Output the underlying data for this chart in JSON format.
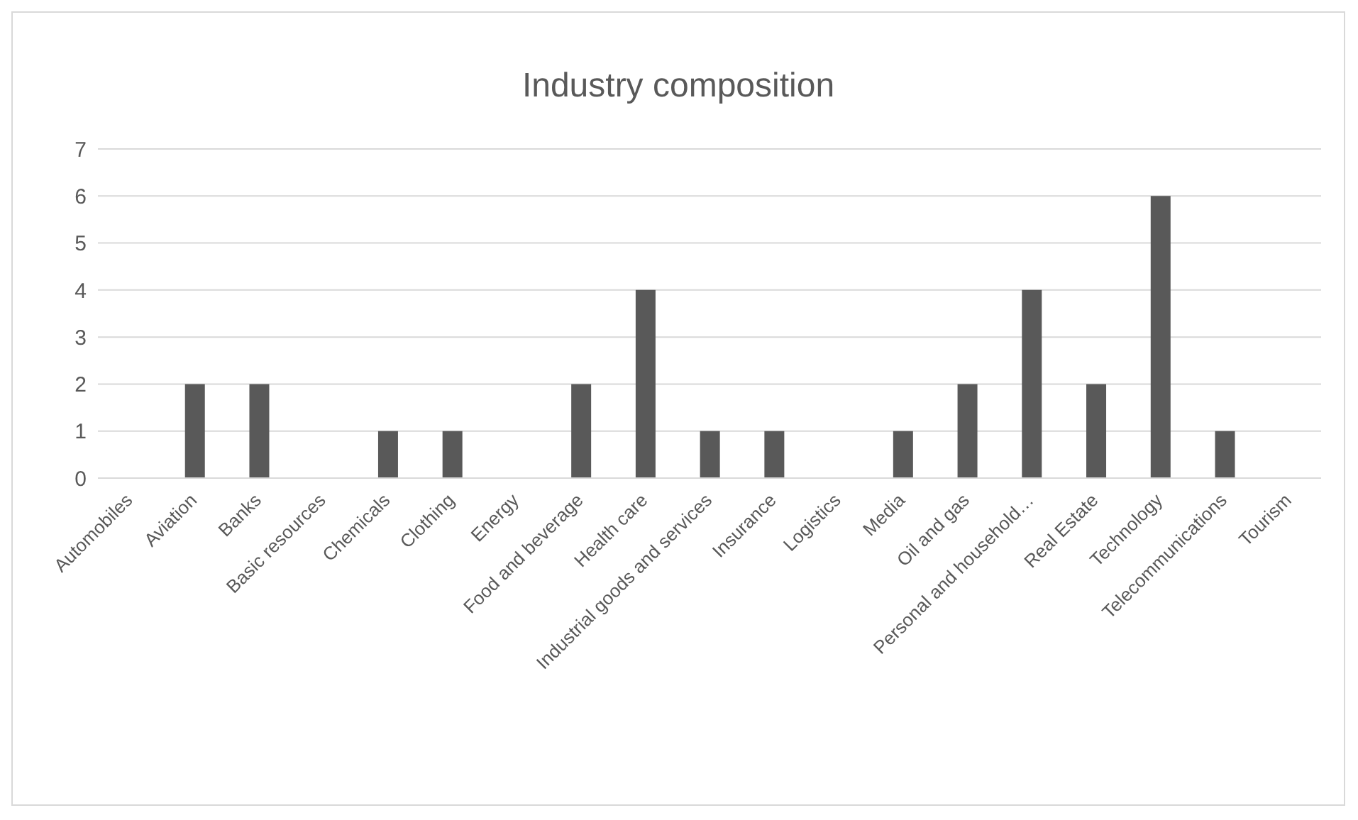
{
  "chart_data": {
    "type": "bar",
    "title": "Industry composition",
    "categories": [
      "Automobiles",
      "Aviation",
      "Banks",
      "Basic resources",
      "Chemicals",
      "Clothing",
      "Energy",
      "Food and beverage",
      "Health care",
      "Industrial goods and services",
      "Insurance",
      "Logistics",
      "Media",
      "Oil and gas",
      "Personal and household…",
      "Real Estate",
      "Technology",
      "Telecommunications",
      "Tourism"
    ],
    "values": [
      0,
      2,
      2,
      0,
      1,
      1,
      0,
      2,
      4,
      1,
      1,
      0,
      1,
      2,
      4,
      2,
      6,
      1,
      0
    ],
    "color": "#595959",
    "ylim": [
      0,
      7
    ],
    "yticks": [
      0,
      1,
      2,
      3,
      4,
      5,
      6,
      7
    ],
    "grid": "y"
  }
}
